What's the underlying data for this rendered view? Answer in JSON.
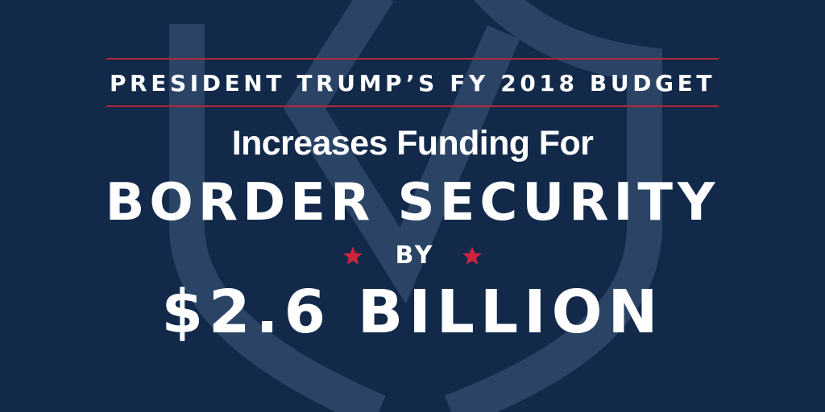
{
  "colors": {
    "background": "#12294a",
    "shield_outline": "#2b4466",
    "rule": "#b72537",
    "star": "#d2233c",
    "text": "#ffffff"
  },
  "background_icon": "shield-icon",
  "subtitle": "PRESIDENT TRUMP’S FY 2018 BUDGET",
  "lead": "Increases Funding For",
  "headline": "BORDER SECURITY",
  "connector": {
    "star_icon": "star-icon",
    "text": "BY"
  },
  "amount": "$2.6 BILLION"
}
